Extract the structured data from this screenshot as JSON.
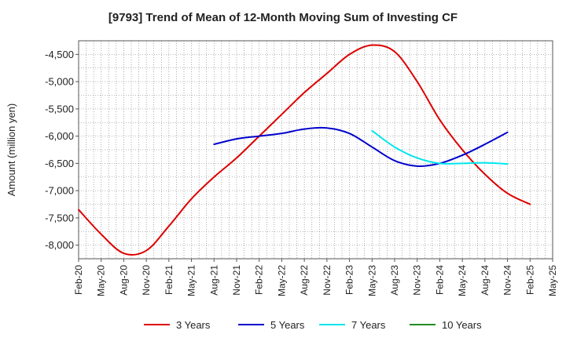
{
  "chart_data": {
    "type": "line",
    "title": "[9793]  Trend of Mean of 12-Month Moving Sum of Investing CF",
    "xlabel": "",
    "ylabel": "Amount (million yen)",
    "ylim": [
      -8250,
      -4250
    ],
    "yticks": [
      -4500,
      -5000,
      -5500,
      -6000,
      -6500,
      -7000,
      -7500,
      -8000
    ],
    "ytick_labels": [
      "-4,500",
      "-5,000",
      "-5,500",
      "-6,000",
      "-6,500",
      "-7,000",
      "-7,500",
      "-8,000"
    ],
    "x_categories": [
      "Feb-20",
      "May-20",
      "Aug-20",
      "Nov-20",
      "Feb-21",
      "May-21",
      "Aug-21",
      "Nov-21",
      "Feb-22",
      "May-22",
      "Aug-22",
      "Nov-22",
      "Feb-23",
      "May-23",
      "Aug-23",
      "Nov-23",
      "Feb-24",
      "May-24",
      "Aug-24",
      "Nov-24",
      "Feb-25",
      "May-25"
    ],
    "grid": true,
    "legend_position": "bottom",
    "series": [
      {
        "name": "3 Years",
        "color": "#dd0000",
        "start_index": 0,
        "values": [
          -7350,
          -7800,
          -8150,
          -8100,
          -7650,
          -7150,
          -6750,
          -6400,
          -6000,
          -5600,
          -5200,
          -4850,
          -4500,
          -4330,
          -4450,
          -5000,
          -5700,
          -6250,
          -6700,
          -7050,
          -7250
        ]
      },
      {
        "name": "5 Years",
        "color": "#0000cc",
        "start_index": 6,
        "values": [
          -6150,
          -6050,
          -6000,
          -5950,
          -5870,
          -5850,
          -5950,
          -6200,
          -6450,
          -6550,
          -6500,
          -6350,
          -6150,
          -5930
        ]
      },
      {
        "name": "7 Years",
        "color": "#00e5ee",
        "start_index": 13,
        "values": [
          -5900,
          -6200,
          -6400,
          -6500,
          -6500,
          -6490,
          -6510
        ]
      },
      {
        "name": "10 Years",
        "color": "#228b22",
        "start_index": 0,
        "values": []
      }
    ]
  }
}
